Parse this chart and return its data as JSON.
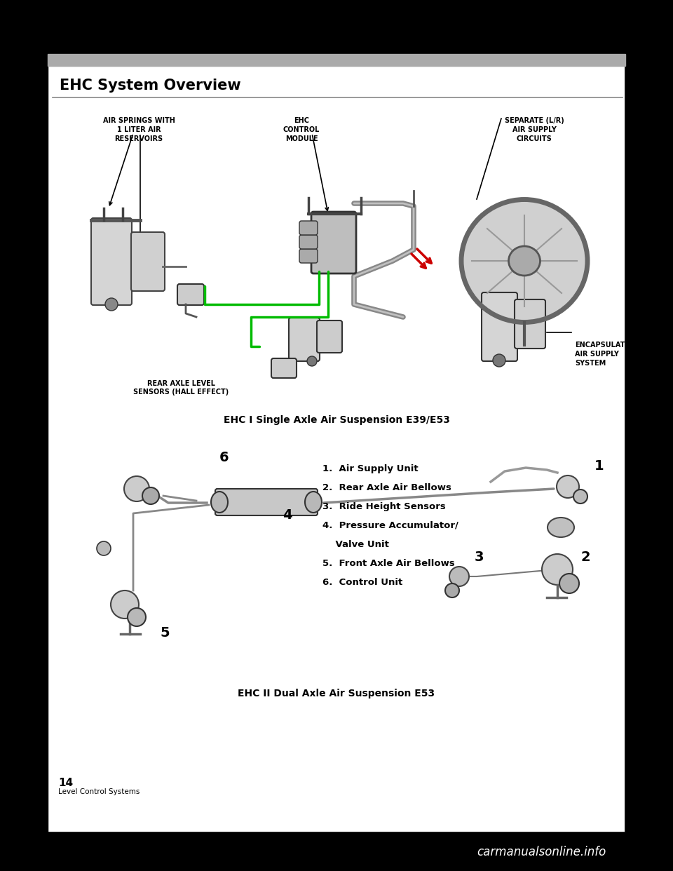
{
  "page_bg": "#000000",
  "content_bg": "#ffffff",
  "title": "EHC System Overview",
  "title_fontsize": 15,
  "diagram1_caption": "EHC I Single Axle Air Suspension E39/E53",
  "diagram2_caption": "EHC II Dual Axle Air Suspension E53",
  "d1_label_springs": "AIR SPRINGS WITH\n1 LITER AIR\nRESERVOIRS",
  "d1_label_module": "EHC\nCONTROL\nMODULE",
  "d1_label_circuits": "SEPARATE (L/R)\nAIR SUPPLY\nCIRCUITS",
  "d1_label_sensors": "REAR AXLE LEVEL\nSENSORS (HALL EFFECT)",
  "d1_label_encap": "ENCAPSULATED\nAIR SUPPLY\nSYSTEM",
  "d2_items_bold": [
    "1.  Air Supply Unit",
    "2.  Rear Axle Air Bellows",
    "3.  Ride Height Sensors",
    "4.  Pressure Accumulator/",
    "    Valve Unit",
    "5.  Front Axle Air Bellows",
    "6.  Control Unit"
  ],
  "d2_numbers": [
    "6",
    "4",
    "1",
    "2",
    "3",
    "5"
  ],
  "page_number": "14",
  "footer_text": "Level Control Systems",
  "watermark": "carmanualsonline.info",
  "green_color": "#00bb00",
  "red_color": "#cc0000",
  "dark_color": "#111111",
  "comp_gray": "#c8c8c8",
  "comp_dark": "#888888",
  "label_fontsize": 7.0,
  "caption1_fontsize": 10,
  "caption2_fontsize": 10,
  "list_fontsize": 9.5,
  "num_fontsize": 14
}
